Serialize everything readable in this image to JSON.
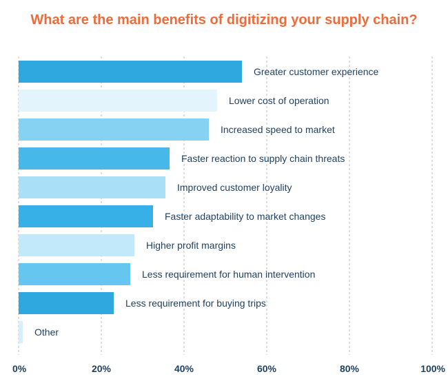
{
  "chart_data": {
    "type": "bar",
    "orientation": "horizontal",
    "title": "What are the main benefits of digitizing your supply chain?",
    "xlabel": "",
    "ylabel": "",
    "xlim": [
      0,
      100
    ],
    "x_ticks": [
      0,
      20,
      40,
      60,
      80,
      100
    ],
    "x_tick_labels": [
      "0%",
      "20%",
      "40%",
      "60%",
      "80%",
      "100%"
    ],
    "grid": true,
    "categories": [
      "Greater customer experience",
      "Lower cost of operation",
      "Increased speed to market",
      "Faster reaction to supply chain threats",
      "Improved customer loyality",
      "Faster adaptability to market changes",
      "Higher profit margins",
      "Less requirement for human intervention",
      "Less requirement for buying trips",
      "Other"
    ],
    "values": [
      54,
      48,
      46,
      36.5,
      35.5,
      32.5,
      28,
      27,
      23,
      1
    ],
    "colors": [
      "#2fa8e0",
      "#e3f4fc",
      "#86d2f3",
      "#46b9ea",
      "#a9e0f7",
      "#36b0e6",
      "#c1e9fa",
      "#65c7f0",
      "#2fa8e0",
      "#d7effb"
    ]
  }
}
